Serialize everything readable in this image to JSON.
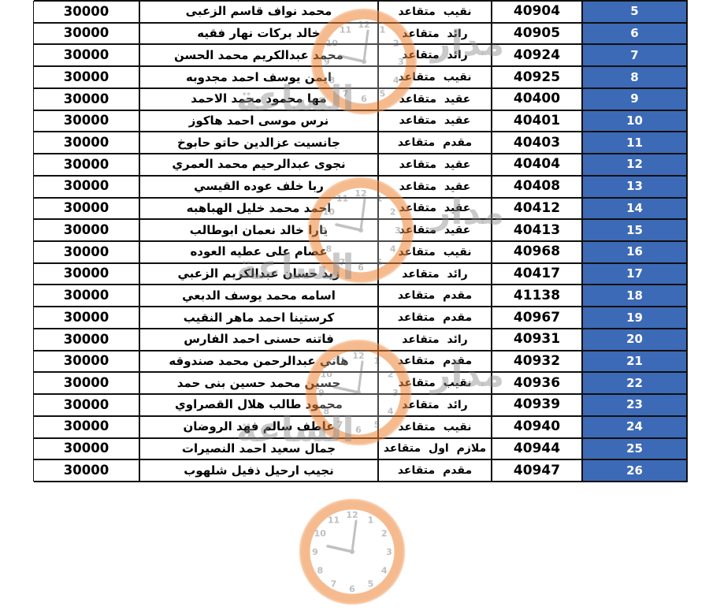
{
  "colors": {
    "serial_bg": "#3d6ab7",
    "serial_text": "#ffffff",
    "border": "#101010",
    "watermark_ring": "#ee8435",
    "watermark_gray": "#8a8a8a"
  },
  "watermark": {
    "brand_word_right": "مدار",
    "brand_word_left": "الساعة",
    "clock_numerals": [
      "12",
      "1",
      "2",
      "3",
      "4",
      "5",
      "6",
      "7",
      "8",
      "9",
      "10",
      "11"
    ]
  },
  "table": {
    "rows": [
      {
        "serial": "5",
        "number": "40904",
        "rank": "نقيب متقاعد",
        "name": "محمد نواف قاسم الزعبى",
        "amount": "30000"
      },
      {
        "serial": "6",
        "number": "40905",
        "rank": "رائد متقاعد",
        "name": "خالد بركات نهار فقيه",
        "amount": "30000"
      },
      {
        "serial": "7",
        "number": "40924",
        "rank": "رائد متقاعد",
        "name": "محمد عبدالكريم محمد الحسن",
        "amount": "30000"
      },
      {
        "serial": "8",
        "number": "40925",
        "rank": "نقيب متقاعد",
        "name": "ايمن يوسف احمد مجدوبه",
        "amount": "30000"
      },
      {
        "serial": "9",
        "number": "40400",
        "rank": "عقيد متقاعد",
        "name": "مها محمود محمد الاحمد",
        "amount": "30000"
      },
      {
        "serial": "10",
        "number": "40401",
        "rank": "عقيد متقاعد",
        "name": "نرس موسى احمد هاكوز",
        "amount": "30000"
      },
      {
        "serial": "11",
        "number": "40403",
        "rank": "مقدم متقاعد",
        "name": "جانسيت عزالدين حاتو حابوخ",
        "amount": "30000"
      },
      {
        "serial": "12",
        "number": "40404",
        "rank": "عقيد متقاعد",
        "name": "نجوى عبدالرحيم محمد العمري",
        "amount": "30000"
      },
      {
        "serial": "13",
        "number": "40408",
        "rank": "عقيد متقاعد",
        "name": "ربا خلف عوده القيسي",
        "amount": "30000"
      },
      {
        "serial": "14",
        "number": "40412",
        "rank": "عقيد متقاعد",
        "name": "احمد محمد خليل الهباهبه",
        "amount": "30000"
      },
      {
        "serial": "15",
        "number": "40413",
        "rank": "عقيد متقاعد",
        "name": "يارا خالد نعمان ابوطالب",
        "amount": "30000"
      },
      {
        "serial": "16",
        "number": "40968",
        "rank": "نقيب متقاعد",
        "name": "عصام على عطيه العوده",
        "amount": "30000"
      },
      {
        "serial": "17",
        "number": "40417",
        "rank": "رائد متقاعد",
        "name": "زيد حسان عبدالكريم الزعبي",
        "amount": "30000"
      },
      {
        "serial": "18",
        "number": "41138",
        "rank": "مقدم متقاعد",
        "name": "اسامه محمد يوسف الدبعي",
        "amount": "30000"
      },
      {
        "serial": "19",
        "number": "40967",
        "rank": "مقدم متقاعد",
        "name": "كرستينا احمد ماهر النقيب",
        "amount": "30000"
      },
      {
        "serial": "20",
        "number": "40931",
        "rank": "رائد متقاعد",
        "name": "فاتنه حسنى احمد الفارس",
        "amount": "30000"
      },
      {
        "serial": "21",
        "number": "40932",
        "rank": "مقدم متقاعد",
        "name": "هاني عبدالرحمن محمد صندوقه",
        "amount": "30000"
      },
      {
        "serial": "22",
        "number": "40936",
        "rank": "نقيب متقاعد",
        "name": "حسين محمد حسين بنى حمد",
        "amount": "30000"
      },
      {
        "serial": "23",
        "number": "40939",
        "rank": "رائد متقاعد",
        "name": "محمود طالب هلال القصراوي",
        "amount": "30000"
      },
      {
        "serial": "24",
        "number": "40940",
        "rank": "نقيب متقاعد",
        "name": "عاطف سالم فهد الروضان",
        "amount": "30000"
      },
      {
        "serial": "25",
        "number": "40944",
        "rank": "ملازم اول متقاعد",
        "name": "جمال سعيد احمد النصيرات",
        "amount": "30000"
      },
      {
        "serial": "26",
        "number": "40947",
        "rank": "مقدم متقاعد",
        "name": "نجيب ارحيل ذفيل شلهوب",
        "amount": "30000"
      }
    ]
  }
}
